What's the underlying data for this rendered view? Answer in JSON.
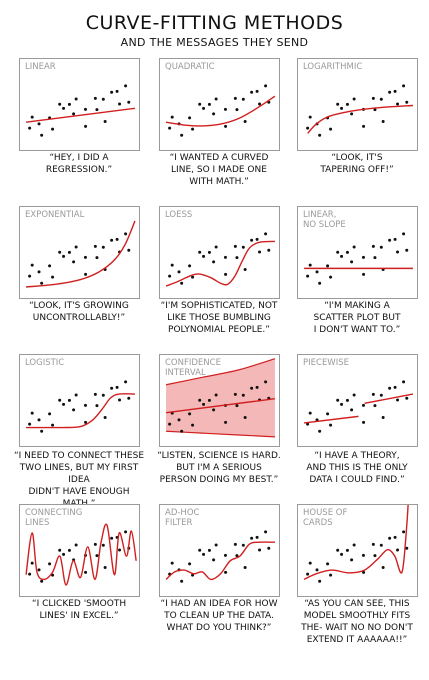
{
  "header": {
    "title": "CURVE-FITTING METHODS",
    "subtitle": "AND THE MESSAGES THEY SEND"
  },
  "colors": {
    "fit": "#d11f1f",
    "band": "#f4b8b8",
    "dots": "#111111",
    "frame": "#9a9a9a"
  },
  "chart_data": [
    {
      "type": "scatter",
      "method": "linear",
      "label": "LINEAR",
      "caption": "“HEY, I DID A\nREGRESSION.”",
      "fit": [
        [
          0.05,
          0.68
        ],
        [
          0.95,
          0.53
        ]
      ]
    },
    {
      "type": "scatter",
      "method": "quadratic",
      "label": "QUADRATIC",
      "caption": "“I WANTED A CURVED\nLINE, SO I MADE ONE\nWITH MATH.”",
      "fit": [
        [
          0.05,
          0.68
        ],
        [
          0.2,
          0.71
        ],
        [
          0.35,
          0.72
        ],
        [
          0.5,
          0.7
        ],
        [
          0.65,
          0.64
        ],
        [
          0.8,
          0.53
        ],
        [
          0.95,
          0.4
        ]
      ]
    },
    {
      "type": "scatter",
      "method": "logarithmic",
      "label": "LOGARITHMIC",
      "caption": "“LOOK, IT'S\nTAPERING OFF!”",
      "fit": [
        [
          0.08,
          0.8
        ],
        [
          0.15,
          0.7
        ],
        [
          0.25,
          0.62
        ],
        [
          0.4,
          0.57
        ],
        [
          0.55,
          0.54
        ],
        [
          0.7,
          0.52
        ],
        [
          0.95,
          0.5
        ]
      ]
    },
    {
      "type": "scatter",
      "method": "exponential",
      "label": "EXPONENTIAL",
      "caption": "“LOOK, IT'S GROWING\nUNCONTROLLABLY!”",
      "fit": [
        [
          0.05,
          0.86
        ],
        [
          0.3,
          0.83
        ],
        [
          0.5,
          0.78
        ],
        [
          0.65,
          0.7
        ],
        [
          0.78,
          0.57
        ],
        [
          0.87,
          0.4
        ],
        [
          0.95,
          0.15
        ]
      ]
    },
    {
      "type": "scatter",
      "method": "loess",
      "label": "LOESS",
      "caption": "“I'M SOPHISTICATED, NOT\nLIKE THOSE BUMBLING\nPOLYNOMIAL PEOPLE.”",
      "fit": [
        [
          0.05,
          0.85
        ],
        [
          0.15,
          0.8
        ],
        [
          0.25,
          0.74
        ],
        [
          0.32,
          0.72
        ],
        [
          0.42,
          0.76
        ],
        [
          0.5,
          0.82
        ],
        [
          0.56,
          0.83
        ],
        [
          0.62,
          0.74
        ],
        [
          0.68,
          0.58
        ],
        [
          0.74,
          0.44
        ],
        [
          0.82,
          0.38
        ],
        [
          0.95,
          0.37
        ]
      ]
    },
    {
      "type": "scatter",
      "method": "linear-no-slope",
      "label": "LINEAR,\nNO SLOPE",
      "caption": "“I'M MAKING A\nSCATTER PLOT BUT\nI DON'T WANT TO.”",
      "fit": [
        [
          0.05,
          0.66
        ],
        [
          0.95,
          0.66
        ]
      ]
    },
    {
      "type": "scatter",
      "method": "logistic",
      "label": "LOGISTIC",
      "caption": "“I NEED TO CONNECT THESE\nTWO LINES, BUT MY FIRST IDEA\nDIDN'T HAVE ENOUGH MATH.”",
      "fit": [
        [
          0.05,
          0.78
        ],
        [
          0.35,
          0.78
        ],
        [
          0.5,
          0.77
        ],
        [
          0.6,
          0.7
        ],
        [
          0.68,
          0.58
        ],
        [
          0.75,
          0.46
        ],
        [
          0.82,
          0.42
        ],
        [
          0.95,
          0.42
        ]
      ]
    },
    {
      "type": "area",
      "method": "confidence-interval",
      "label": "CONFIDENCE\nINTERVAL",
      "caption": "“LISTEN, SCIENCE IS HARD.\nBUT I'M A SERIOUS\nPERSON DOING MY BEST.”",
      "fit": [
        [
          0.05,
          0.62
        ],
        [
          0.95,
          0.47
        ]
      ],
      "upper": [
        [
          0.05,
          0.32
        ],
        [
          0.35,
          0.24
        ],
        [
          0.65,
          0.16
        ],
        [
          0.95,
          0.04
        ]
      ],
      "lower": [
        [
          0.05,
          0.82
        ],
        [
          0.35,
          0.84
        ],
        [
          0.65,
          0.86
        ],
        [
          0.95,
          0.88
        ]
      ]
    },
    {
      "type": "scatter",
      "method": "piecewise",
      "label": "PIECEWISE",
      "caption": "“I HAVE A THEORY,\nAND THIS IS THE ONLY\nDATA I COULD FIND.”",
      "segments": [
        [
          [
            0.05,
            0.73
          ],
          [
            0.5,
            0.66
          ]
        ],
        [
          [
            0.55,
            0.52
          ],
          [
            0.95,
            0.42
          ]
        ]
      ]
    },
    {
      "type": "line",
      "method": "connecting-lines",
      "label": "CONNECTING\nLINES",
      "caption": "“I CLICKED 'SMOOTH\nLINES' IN EXCEL.”",
      "fit": [
        [
          0.05,
          0.75
        ],
        [
          0.1,
          0.3
        ],
        [
          0.14,
          0.72
        ],
        [
          0.2,
          0.8
        ],
        [
          0.27,
          0.72
        ],
        [
          0.33,
          0.55
        ],
        [
          0.38,
          0.86
        ],
        [
          0.44,
          0.6
        ],
        [
          0.5,
          0.78
        ],
        [
          0.56,
          0.45
        ],
        [
          0.62,
          0.8
        ],
        [
          0.67,
          0.4
        ],
        [
          0.72,
          0.22
        ],
        [
          0.78,
          0.75
        ],
        [
          0.82,
          0.3
        ],
        [
          0.88,
          0.55
        ],
        [
          0.92,
          0.28
        ],
        [
          0.96,
          0.6
        ]
      ]
    },
    {
      "type": "line",
      "method": "ad-hoc-filter",
      "label": "AD-HOC\nFILTER",
      "caption": "“I HAD AN IDEA FOR HOW\nTO CLEAN UP THE DATA.\nWHAT DO YOU THINK?”",
      "fit": [
        [
          0.05,
          0.8
        ],
        [
          0.12,
          0.72
        ],
        [
          0.2,
          0.7
        ],
        [
          0.28,
          0.74
        ],
        [
          0.35,
          0.72
        ],
        [
          0.42,
          0.8
        ],
        [
          0.5,
          0.74
        ],
        [
          0.58,
          0.6
        ],
        [
          0.66,
          0.55
        ],
        [
          0.74,
          0.42
        ],
        [
          0.82,
          0.4
        ],
        [
          0.95,
          0.4
        ]
      ]
    },
    {
      "type": "line",
      "method": "house-of-cards",
      "label": "HOUSE OF\nCARDS",
      "caption": "“AS YOU CAN SEE, THIS\nMODEL SMOOTHLY FITS\nTHE- WAIT NO NO DON'T\nEXTEND IT AAAAAA!!”",
      "fit": [
        [
          0.05,
          0.8
        ],
        [
          0.15,
          0.74
        ],
        [
          0.28,
          0.7
        ],
        [
          0.42,
          0.73
        ],
        [
          0.55,
          0.7
        ],
        [
          0.66,
          0.58
        ],
        [
          0.74,
          0.48
        ],
        [
          0.8,
          0.55
        ],
        [
          0.86,
          0.72
        ],
        [
          0.9,
          0.2
        ],
        [
          0.93,
          -0.4
        ],
        [
          0.96,
          -0.3
        ]
      ]
    }
  ]
}
